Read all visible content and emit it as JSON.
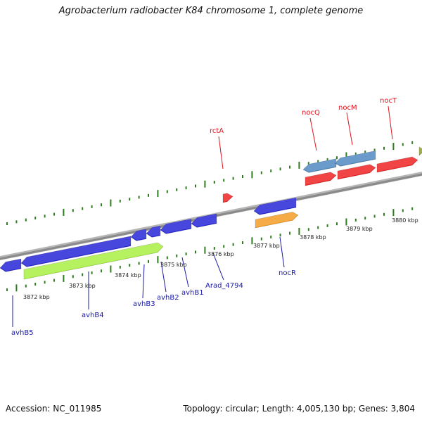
{
  "title": "Agrobacterium radiobacter K84 chromosome 1, complete genome",
  "footer": {
    "accession": "Accession: NC_011985",
    "summary": "Topology: circular; Length: 4,005,130 bp; Genes: 3,804"
  },
  "colors": {
    "backbone": "#8a8a8a",
    "tick": "#2e7d1e",
    "label_red": "#e0141e",
    "label_blue": "#1a1aa8",
    "gene_red": "#ee1c1c",
    "gene_blue": "#1f1fd6",
    "gene_steel": "#4a86c0",
    "gene_orange": "#f59a1e",
    "gene_lime": "#a6ef3c",
    "gene_olive": "#8a9a2a"
  },
  "ruler": {
    "unit": "kbp",
    "labels": [
      "3872 kbp",
      "3873 kbp",
      "3874 kbp",
      "3875 kbp",
      "3876 kbp",
      "3877 kbp",
      "3878 kbp",
      "3879 kbp",
      "3880 kbp"
    ]
  },
  "gene_labels": {
    "above": [
      "rctA",
      "nocQ",
      "nocM",
      "nocT"
    ],
    "below": [
      "avhB5",
      "avhB4",
      "avhB3",
      "avhB2",
      "avhB1",
      "Arad_4794",
      "nocR"
    ]
  }
}
